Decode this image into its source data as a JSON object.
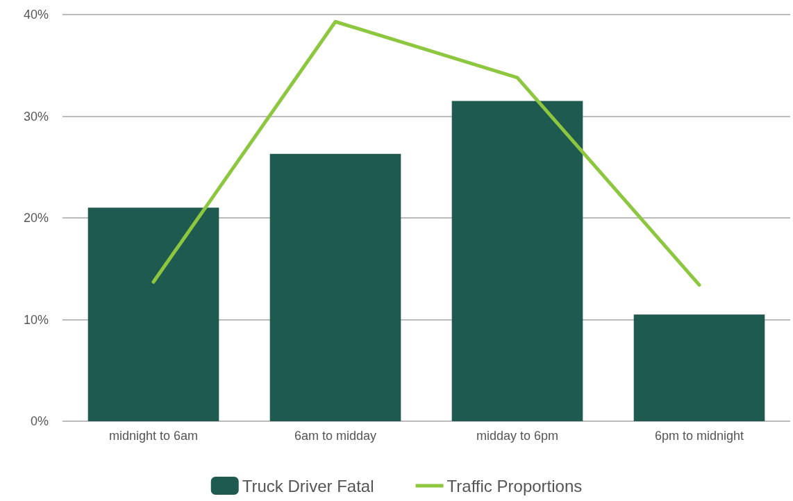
{
  "chart_data": {
    "type": "bar",
    "categories": [
      "midnight to 6am",
      "6am to midday",
      "midday to 6pm",
      "6pm to midnight"
    ],
    "series": [
      {
        "name": "Truck Driver Fatal",
        "color": "#1f5a50",
        "values": [
          21.0,
          26.3,
          31.5,
          10.5
        ]
      },
      {
        "name": "Traffic Proportions",
        "type": "line",
        "color": "#8dc63f",
        "values": [
          13.7,
          39.3,
          33.8,
          13.4
        ]
      }
    ],
    "ylim": [
      0,
      40
    ],
    "yticks": [
      {
        "value": 0,
        "label": "0%"
      },
      {
        "value": 10,
        "label": "10%"
      },
      {
        "value": 20,
        "label": "20%"
      },
      {
        "value": 30,
        "label": "30%"
      },
      {
        "value": 40,
        "label": "40%"
      }
    ],
    "grid": "y",
    "legend": "bottom",
    "marker": "none",
    "line_style": "solid"
  }
}
